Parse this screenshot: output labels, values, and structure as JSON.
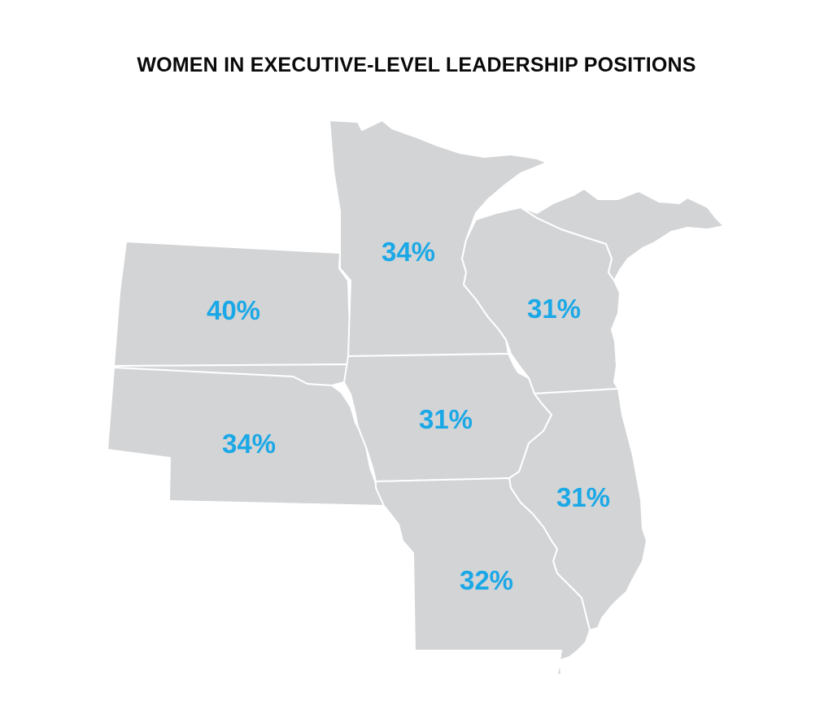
{
  "title": "WOMEN IN EXECUTIVE-LEVEL LEADERSHIP POSITIONS",
  "colors": {
    "land": "#d3d4d6",
    "border": "#ffffff",
    "label": "#1ba8e6",
    "title": "#0a0a0a"
  },
  "regions": {
    "north_dakota": {
      "value": "40%"
    },
    "south_dakota": {
      "value": "34%"
    },
    "minnesota": {
      "value": "34%"
    },
    "wisconsin": {
      "value": "31%"
    },
    "iowa": {
      "value": "31%"
    },
    "illinois": {
      "value": "31%"
    },
    "missouri": {
      "value": "32%"
    }
  }
}
